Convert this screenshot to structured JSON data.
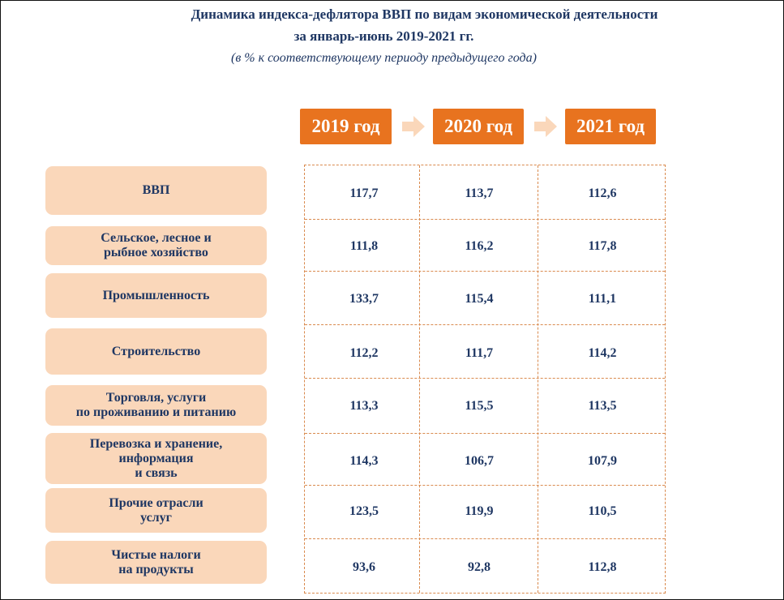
{
  "header": {
    "title_line1": "Динамика индекса-дефлятора ВВП по видам экономической деятельности",
    "title_line2": "за январь-июнь 2019-2021 гг.",
    "subtitle": "(в % к соответствующему периоду предыдущего года)"
  },
  "years": [
    "2019 год",
    "2020 год",
    "2021 год"
  ],
  "colors": {
    "accent": "#E8731F",
    "label_bg": "#FAD7BA",
    "text": "#1F3763",
    "grid": "#D98A4E"
  },
  "chart_data": {
    "type": "table",
    "title": "Динамика индекса-дефлятора ВВП по видам экономической деятельности за январь-июнь 2019-2021 гг.",
    "subtitle": "(в % к соответствующему периоду предыдущего года)",
    "columns": [
      "2019 год",
      "2020 год",
      "2021 год"
    ],
    "rows": [
      {
        "label": "ВВП",
        "values": [
          "117,7",
          "113,7",
          "112,6"
        ]
      },
      {
        "label": "Сельское, лесное и\nрыбное хозяйство",
        "values": [
          "111,8",
          "116,2",
          "117,8"
        ]
      },
      {
        "label": "Промышленность",
        "values": [
          "133,7",
          "115,4",
          "111,1"
        ]
      },
      {
        "label": "Строительство",
        "values": [
          "112,2",
          "111,7",
          "114,2"
        ]
      },
      {
        "label": "Торговля, услуги\nпо проживанию и питанию",
        "values": [
          "113,3",
          "115,5",
          "113,5"
        ]
      },
      {
        "label": "Перевозка и хранение,\nинформация\nи связь",
        "values": [
          "114,3",
          "106,7",
          "107,9"
        ]
      },
      {
        "label": "Прочие отрасли\nуслуг",
        "values": [
          "123,5",
          "119,9",
          "110,5"
        ]
      },
      {
        "label": "Чистые налоги\nна продукты",
        "values": [
          "93,6",
          "92,8",
          "112,8"
        ]
      }
    ]
  }
}
